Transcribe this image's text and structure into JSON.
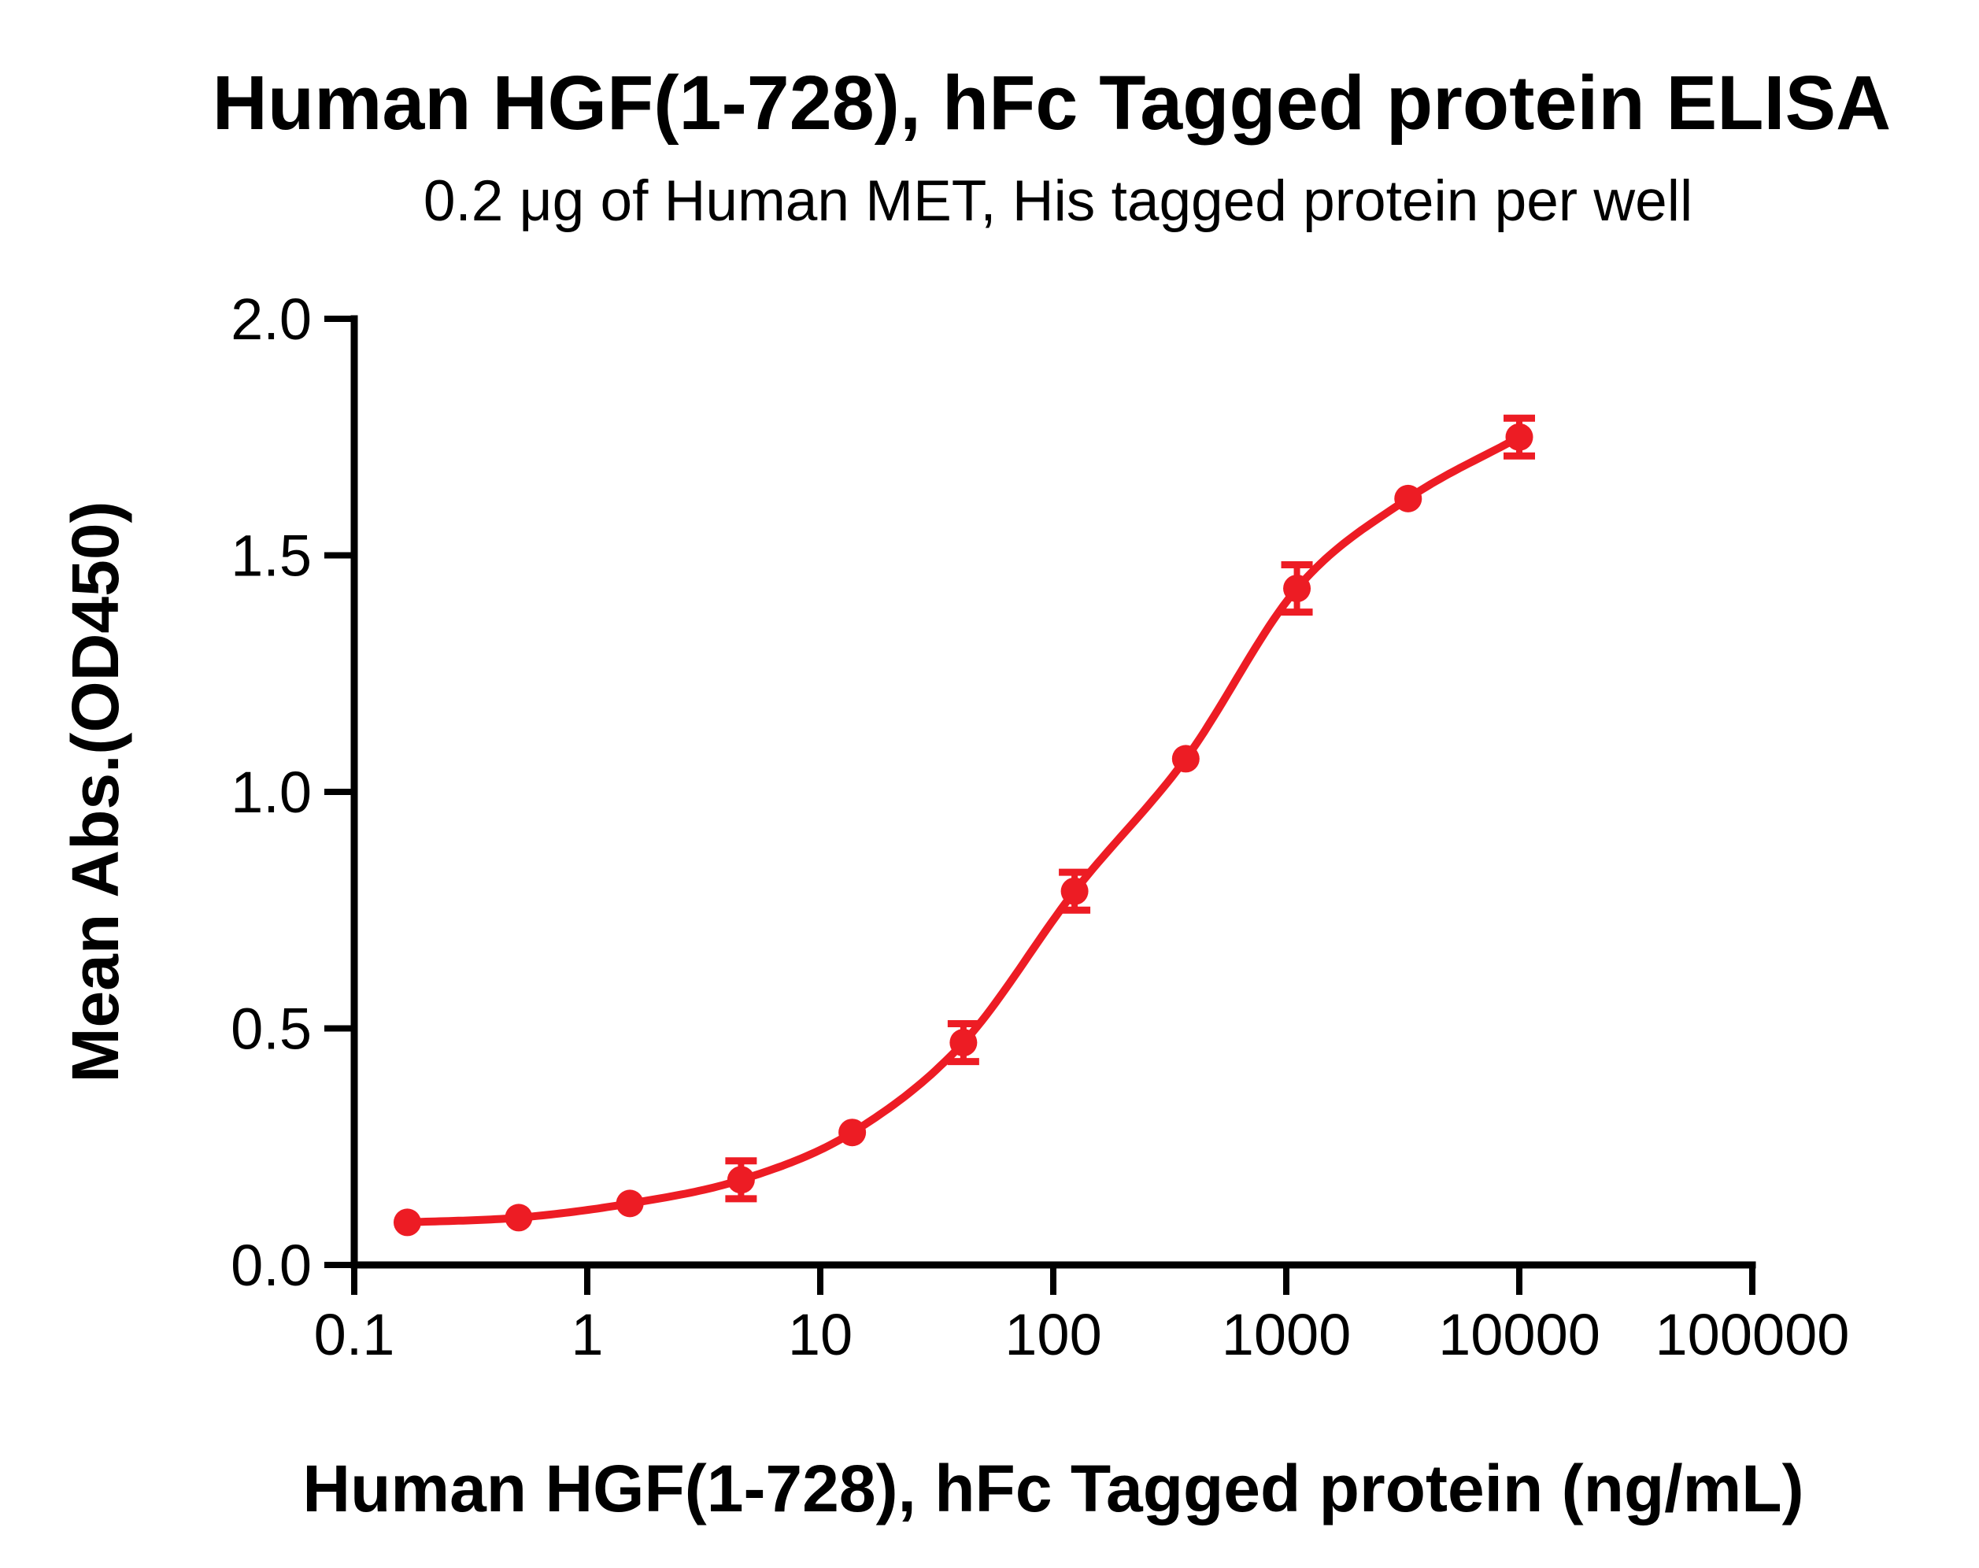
{
  "figure": {
    "background": "#FFFFFF",
    "text_color": "#000000"
  },
  "chart_data": {
    "type": "scatter",
    "title": "Human HGF(1-728), hFc Tagged protein ELISA",
    "subtitle": "0.2 μg of Human MET, His tagged protein per well",
    "xlabel": "Human HGF(1-728), hFc Tagged protein (ng/mL)",
    "ylabel": "Mean Abs.(OD450)",
    "x_scale": "log10",
    "xlim": [
      0.1,
      100000
    ],
    "ylim": [
      0.0,
      2.0
    ],
    "x_tick_values": [
      0.1,
      1,
      10,
      100,
      1000,
      10000,
      100000
    ],
    "x_tick_labels": [
      "0.1",
      "1",
      "10",
      "100",
      "1000",
      "10000",
      "100000"
    ],
    "y_tick_values": [
      0.0,
      0.5,
      1.0,
      1.5,
      2.0
    ],
    "y_tick_labels": [
      "0.0",
      "0.5",
      "1.0",
      "1.5",
      "2.0"
    ],
    "grid": false,
    "legend_position": "none",
    "series": [
      {
        "name": "Human HGF(1-728), hFc Tagged protein",
        "color": "#ED1C24",
        "marker": "circle",
        "curve_fit": "4PL sigmoid (smooth through points)",
        "x_ng_per_mL": [
          0.169,
          0.508,
          1.524,
          4.572,
          13.717,
          41.152,
          123.457,
          370.37,
          1111.1,
          3333.3,
          10000
        ],
        "y_od450": [
          0.09,
          0.1,
          0.13,
          0.18,
          0.28,
          0.47,
          0.79,
          1.07,
          1.43,
          1.62,
          1.75
        ],
        "y_err": [
          0,
          0,
          0,
          0.04,
          0,
          0.04,
          0.04,
          0,
          0.05,
          0,
          0.04
        ]
      }
    ]
  }
}
